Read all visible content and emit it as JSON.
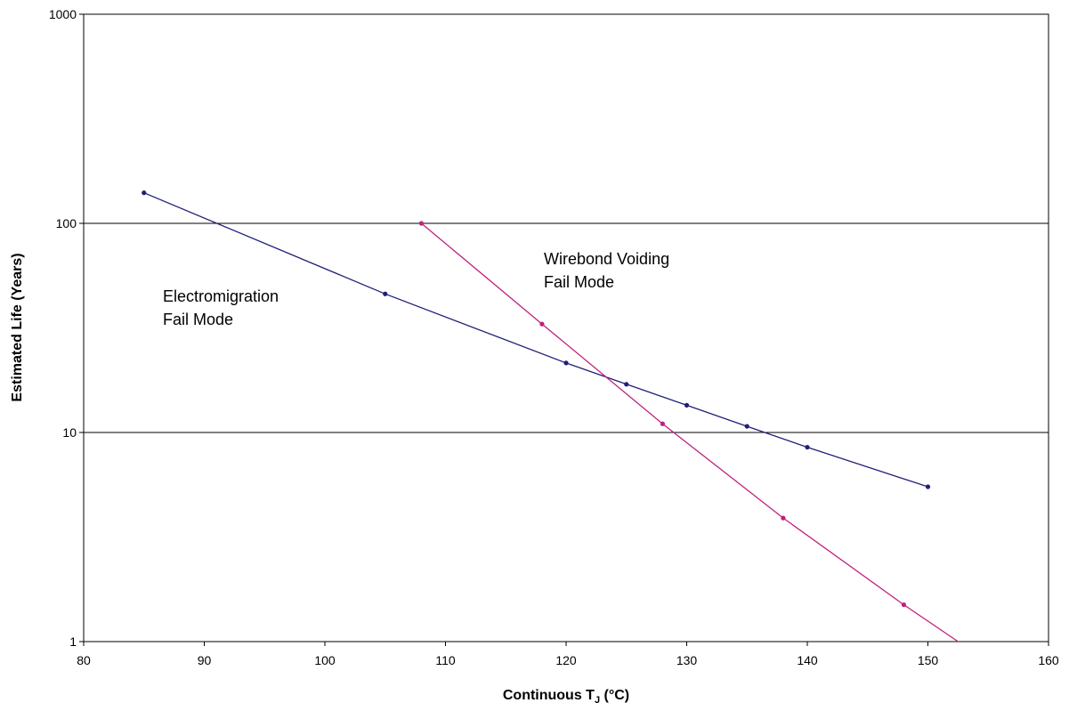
{
  "chart_data": {
    "type": "line",
    "title": "",
    "xlabel_main": "Continuous T",
    "xlabel_sub": "J",
    "xlabel_unit": " (°C)",
    "ylabel": "Estimated Life (Years)",
    "xlim": [
      80,
      160
    ],
    "ylim": [
      1,
      1000
    ],
    "yscale": "log",
    "grid": "horizontal major lines",
    "x_ticks": [
      "80",
      "90",
      "100",
      "110",
      "120",
      "130",
      "140",
      "150",
      "160"
    ],
    "y_ticks": [
      "1",
      "10",
      "100",
      "1000"
    ],
    "series": [
      {
        "color": "#1f1f7a",
        "marker": "dot",
        "points": [
          [
            85,
            140
          ],
          [
            105,
            46
          ],
          [
            120,
            21.5
          ],
          [
            125,
            17
          ],
          [
            130,
            13.5
          ],
          [
            135,
            10.7
          ],
          [
            140,
            8.5
          ],
          [
            150,
            5.5
          ]
        ]
      },
      {
        "color": "#c0207e",
        "marker": "dot",
        "points": [
          [
            108,
            100
          ],
          [
            118,
            33
          ],
          [
            128,
            11
          ],
          [
            138,
            3.9
          ],
          [
            148,
            1.5
          ]
        ],
        "extends_to": [
          152.5,
          1
        ]
      }
    ],
    "annotations": [
      {
        "lines": [
          "Electromigration",
          "Fail Mode"
        ]
      },
      {
        "lines": [
          "Wirebond Voiding",
          "Fail Mode"
        ]
      }
    ]
  }
}
